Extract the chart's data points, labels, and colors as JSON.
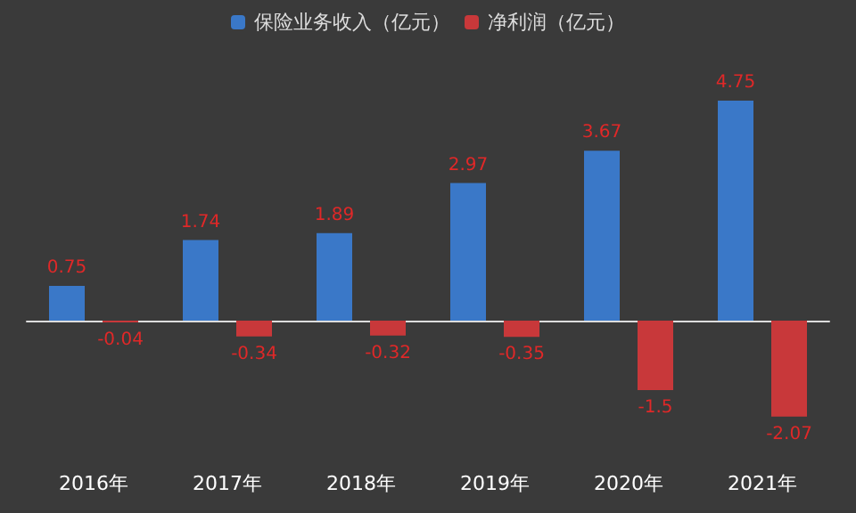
{
  "chart_data": {
    "type": "bar",
    "categories": [
      "2016年",
      "2017年",
      "2018年",
      "2019年",
      "2020年",
      "2021年"
    ],
    "series": [
      {
        "name": "保险业务收入（亿元）",
        "color": "#3a78c8",
        "values": [
          0.75,
          1.74,
          1.89,
          2.97,
          3.67,
          4.75
        ]
      },
      {
        "name": "净利润（亿元）",
        "color": "#c8383a",
        "values": [
          -0.04,
          -0.34,
          -0.32,
          -0.35,
          -1.5,
          -2.07
        ]
      }
    ],
    "data_labels": true,
    "legend": "top"
  }
}
